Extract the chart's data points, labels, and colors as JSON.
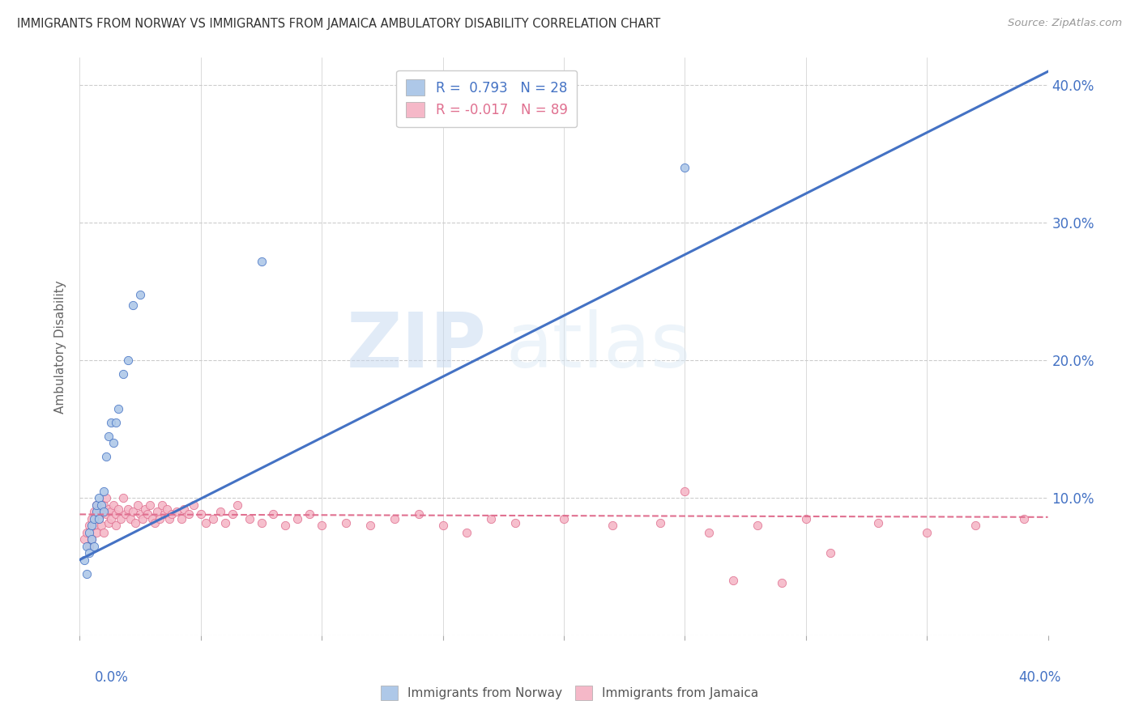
{
  "title": "IMMIGRANTS FROM NORWAY VS IMMIGRANTS FROM JAMAICA AMBULATORY DISABILITY CORRELATION CHART",
  "source": "Source: ZipAtlas.com",
  "ylabel": "Ambulatory Disability",
  "xlim": [
    0.0,
    0.4
  ],
  "ylim": [
    0.0,
    0.42
  ],
  "yticks_right": [
    0.1,
    0.2,
    0.3,
    0.4
  ],
  "norway_color": "#aec8e8",
  "jamaica_color": "#f5b8c8",
  "norway_line_color": "#4472c4",
  "jamaica_line_color": "#e07090",
  "norway_R": 0.793,
  "norway_N": 28,
  "jamaica_R": -0.017,
  "jamaica_N": 89,
  "watermark_zip": "ZIP",
  "watermark_atlas": "atlas",
  "norway_scatter_x": [
    0.002,
    0.003,
    0.003,
    0.004,
    0.004,
    0.005,
    0.005,
    0.006,
    0.006,
    0.007,
    0.007,
    0.008,
    0.008,
    0.009,
    0.01,
    0.01,
    0.011,
    0.012,
    0.013,
    0.014,
    0.015,
    0.016,
    0.018,
    0.02,
    0.022,
    0.025,
    0.075,
    0.25
  ],
  "norway_scatter_y": [
    0.055,
    0.065,
    0.045,
    0.075,
    0.06,
    0.08,
    0.07,
    0.085,
    0.065,
    0.09,
    0.095,
    0.085,
    0.1,
    0.095,
    0.09,
    0.105,
    0.13,
    0.145,
    0.155,
    0.14,
    0.155,
    0.165,
    0.19,
    0.2,
    0.24,
    0.248,
    0.272,
    0.34
  ],
  "jamaica_scatter_x": [
    0.002,
    0.003,
    0.004,
    0.004,
    0.005,
    0.005,
    0.006,
    0.006,
    0.007,
    0.007,
    0.008,
    0.008,
    0.009,
    0.009,
    0.01,
    0.01,
    0.011,
    0.011,
    0.012,
    0.012,
    0.013,
    0.013,
    0.014,
    0.015,
    0.015,
    0.016,
    0.017,
    0.018,
    0.019,
    0.02,
    0.021,
    0.022,
    0.023,
    0.024,
    0.025,
    0.026,
    0.027,
    0.028,
    0.029,
    0.03,
    0.031,
    0.032,
    0.033,
    0.034,
    0.035,
    0.036,
    0.037,
    0.038,
    0.04,
    0.042,
    0.043,
    0.045,
    0.047,
    0.05,
    0.052,
    0.055,
    0.058,
    0.06,
    0.063,
    0.065,
    0.07,
    0.075,
    0.08,
    0.085,
    0.09,
    0.095,
    0.1,
    0.11,
    0.12,
    0.13,
    0.14,
    0.15,
    0.16,
    0.17,
    0.18,
    0.2,
    0.22,
    0.24,
    0.26,
    0.28,
    0.3,
    0.31,
    0.33,
    0.35,
    0.37,
    0.39,
    0.25,
    0.27,
    0.29
  ],
  "jamaica_scatter_y": [
    0.07,
    0.075,
    0.065,
    0.08,
    0.085,
    0.07,
    0.08,
    0.09,
    0.075,
    0.095,
    0.085,
    0.092,
    0.08,
    0.088,
    0.095,
    0.075,
    0.1,
    0.088,
    0.092,
    0.082,
    0.09,
    0.085,
    0.095,
    0.088,
    0.08,
    0.092,
    0.085,
    0.1,
    0.088,
    0.092,
    0.085,
    0.09,
    0.082,
    0.095,
    0.088,
    0.085,
    0.092,
    0.088,
    0.095,
    0.085,
    0.082,
    0.09,
    0.085,
    0.095,
    0.088,
    0.092,
    0.085,
    0.088,
    0.09,
    0.085,
    0.092,
    0.088,
    0.095,
    0.088,
    0.082,
    0.085,
    0.09,
    0.082,
    0.088,
    0.095,
    0.085,
    0.082,
    0.088,
    0.08,
    0.085,
    0.088,
    0.08,
    0.082,
    0.08,
    0.085,
    0.088,
    0.08,
    0.075,
    0.085,
    0.082,
    0.085,
    0.08,
    0.082,
    0.075,
    0.08,
    0.085,
    0.06,
    0.082,
    0.075,
    0.08,
    0.085,
    0.105,
    0.04,
    0.038
  ],
  "background_color": "#ffffff",
  "grid_color": "#cccccc"
}
